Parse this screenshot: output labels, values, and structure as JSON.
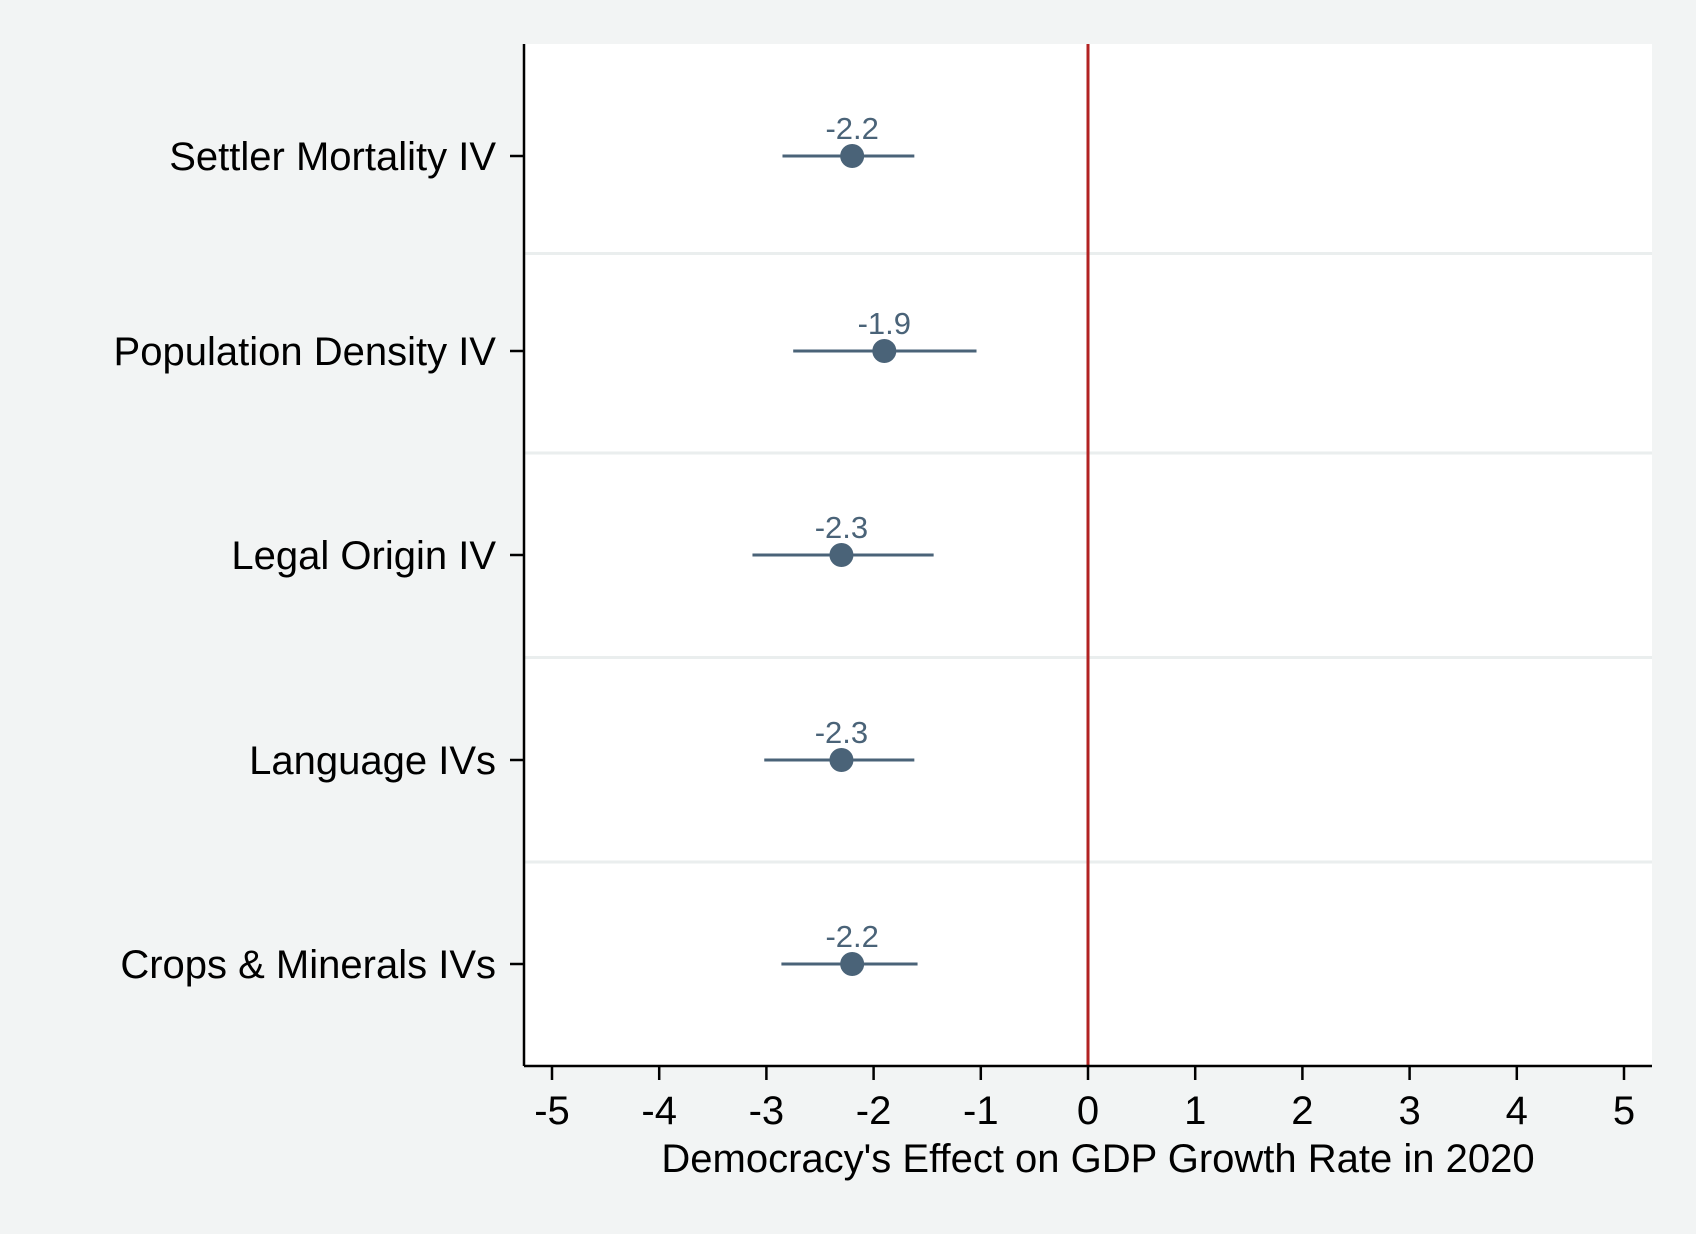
{
  "chart_data": {
    "type": "scatter",
    "orientation": "horizontal",
    "title": "",
    "xlabel": "Democracy's Effect on GDP Growth Rate in 2020",
    "ylabel": "",
    "xlim": [
      -5,
      5
    ],
    "xticks": [
      "-5",
      "-4",
      "-3",
      "-2",
      "-1",
      "0",
      "1",
      "2",
      "3",
      "4",
      "5"
    ],
    "grid": "horizontal separators between rows",
    "legend": "none",
    "reference_line": {
      "x": 0,
      "color": "#b22222"
    },
    "categories": [
      "Settler Mortality IV",
      "Population Density IV",
      "Legal Origin IV",
      "Language IVs",
      "Crops & Minerals IVs"
    ],
    "series": [
      {
        "estimates": [
          -2.2,
          -1.9,
          -2.3,
          -2.3,
          -2.2
        ],
        "ci_low": [
          -2.85,
          -2.75,
          -3.13,
          -3.02,
          -2.86
        ],
        "ci_high": [
          -1.62,
          -1.04,
          -1.44,
          -1.62,
          -1.59
        ],
        "labels": [
          "-2.2",
          "-1.9",
          "-2.3",
          "-2.3",
          "-2.2"
        ],
        "color": "#4a6378"
      }
    ]
  }
}
